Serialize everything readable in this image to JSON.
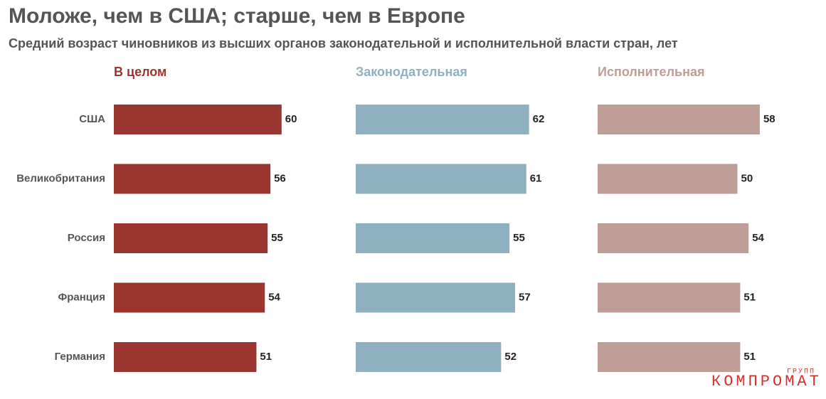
{
  "chart_data": {
    "type": "bar",
    "title": "Моложе, чем в США; старше, чем в Европе",
    "subtitle": "Средний возраст чиновников из высших органов законодательной и исполнительной власти стран, лет",
    "categories": [
      "США",
      "Великобритания",
      "Россия",
      "Франция",
      "Германия"
    ],
    "series": [
      {
        "name": "В целом",
        "color": "#9b3530",
        "values": [
          60,
          56,
          55,
          54,
          51
        ]
      },
      {
        "name": "Законодательная",
        "color": "#8fb0c1",
        "values": [
          62,
          61,
          55,
          57,
          52
        ]
      },
      {
        "name": "Исполнительная",
        "color": "#bf9e97",
        "values": [
          58,
          50,
          54,
          51,
          51
        ]
      }
    ]
  },
  "watermark": {
    "main": "КОМПРОМАТ",
    "small": "ГРУПП"
  }
}
